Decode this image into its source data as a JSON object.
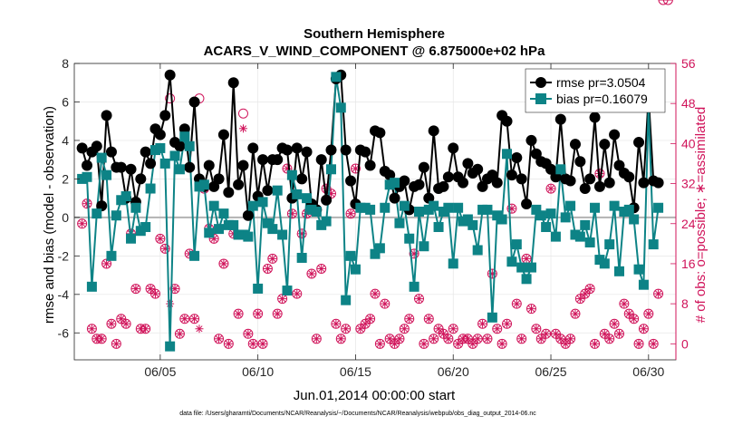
{
  "chart_data": {
    "type": "line",
    "title": "Southern Hemisphere",
    "subtitle": "ACARS_V_WIND_COMPONENT @ 6.875000e+02 hPa",
    "xlabel": "Jun.01,2014 00:00:00 start",
    "ylabel_left": "rmse and bias (model - observation)",
    "ylabel_right": "# of obs: o=possible; ∗=assimilated",
    "footnote": "data file: /Users/gharamti/Documents/NCAR/Reanalysis/~/Documents/NCAR/Reanalysis/webpub/obs_diag_output_2014-06.nc",
    "x_ticks": [
      "06/05",
      "06/10",
      "06/15",
      "06/20",
      "06/25",
      "06/30"
    ],
    "x_tick_days": [
      5,
      10,
      15,
      20,
      25,
      30
    ],
    "xlim_days": [
      0.6,
      31.4
    ],
    "ylim_left": [
      -7.4,
      8
    ],
    "yticks_left": [
      -6,
      -4,
      -2,
      0,
      2,
      4,
      6,
      8
    ],
    "ylim_right": [
      -3.2,
      56
    ],
    "yticks_right": [
      0,
      8,
      16,
      24,
      32,
      40,
      48,
      56
    ],
    "grid": true,
    "legend_position": "top-right",
    "x_days": [
      1.0,
      1.25,
      1.5,
      1.75,
      2.0,
      2.25,
      2.5,
      2.75,
      3.0,
      3.25,
      3.5,
      3.75,
      4.0,
      4.25,
      4.5,
      4.75,
      5.0,
      5.25,
      5.5,
      5.75,
      6.0,
      6.25,
      6.5,
      6.75,
      7.0,
      7.25,
      7.5,
      7.75,
      8.0,
      8.25,
      8.5,
      8.75,
      9.0,
      9.25,
      9.5,
      9.75,
      10.0,
      10.25,
      10.5,
      10.75,
      11.0,
      11.25,
      11.5,
      11.75,
      12.0,
      12.25,
      12.5,
      12.75,
      13.0,
      13.25,
      13.5,
      13.75,
      14.0,
      14.25,
      14.5,
      14.75,
      15.0,
      15.25,
      15.5,
      15.75,
      16.0,
      16.25,
      16.5,
      16.75,
      17.0,
      17.25,
      17.5,
      17.75,
      18.0,
      18.25,
      18.5,
      18.75,
      19.0,
      19.25,
      19.5,
      19.75,
      20.0,
      20.25,
      20.5,
      20.75,
      21.0,
      21.25,
      21.5,
      21.75,
      22.0,
      22.25,
      22.5,
      22.75,
      23.0,
      23.25,
      23.5,
      23.75,
      24.0,
      24.25,
      24.5,
      24.75,
      25.0,
      25.25,
      25.5,
      25.75,
      26.0,
      26.25,
      26.5,
      26.75,
      27.0,
      27.25,
      27.5,
      27.75,
      28.0,
      28.25,
      28.5,
      28.75,
      29.0,
      29.25,
      29.5,
      29.75,
      30.0,
      30.25,
      30.5,
      30.75,
      31.0
    ],
    "series": [
      {
        "name": "rmse pr=3.0504",
        "color": "#000000",
        "marker": "circle",
        "axis": "left",
        "values": [
          3.6,
          2.7,
          3.4,
          3.7,
          0.6,
          5.3,
          3.4,
          2.6,
          2.6,
          1.0,
          2.5,
          0.8,
          2.0,
          3.4,
          2.8,
          4.6,
          4.3,
          5.3,
          7.4,
          3.9,
          3.7,
          4.6,
          2.6,
          6.0,
          2.0,
          1.6,
          2.7,
          1.6,
          2.0,
          4.3,
          1.3,
          7.0,
          1.7,
          2.7,
          0.1,
          3.6,
          1.1,
          3.0,
          1.4,
          3.0,
          3.0,
          3.6,
          3.5,
          1.0,
          3.6,
          2.0,
          3.4,
          0.7,
          0.4,
          3.0,
          0.9,
          3.5,
          7.2,
          7.4,
          3.5,
          1.9,
          0.7,
          3.5,
          3.4,
          2.7,
          4.5,
          4.4,
          2.4,
          2.2,
          1.0,
          1.6,
          1.9,
          0.4,
          1.6,
          1.7,
          2.6,
          1.0,
          4.5,
          1.5,
          1.6,
          2.1,
          3.6,
          2.1,
          1.8,
          2.8,
          2.3,
          2.5,
          1.6,
          2.0,
          2.2,
          1.8,
          5.3,
          5.0,
          2.2,
          3.1,
          2.0,
          0.7,
          4.0,
          3.3,
          2.9,
          2.8,
          2.5,
          2.1,
          5.1,
          2.0,
          1.9,
          3.8,
          2.9,
          1.5,
          2.0,
          5.2,
          1.6,
          3.8,
          1.8,
          4.3,
          2.7,
          2.3,
          2.1,
          0.5,
          3.9,
          1.8,
          6.3,
          1.9,
          1.8
        ]
      },
      {
        "name": "bias pr=0.16079",
        "color": "#0d8386",
        "marker": "square",
        "axis": "left",
        "values": [
          2.0,
          2.1,
          -3.6,
          0.2,
          3.1,
          2.2,
          -2.0,
          0.1,
          0.9,
          1.1,
          -1.1,
          0.5,
          -0.7,
          -0.5,
          1.5,
          3.5,
          3.6,
          2.8,
          -6.7,
          3.2,
          2.5,
          4.2,
          3.7,
          -2.0,
          1.6,
          1.7,
          -0.8,
          0.6,
          -0.6,
          0.2,
          -0.4,
          -0.4,
          -0.9,
          -0.9,
          -1.0,
          0.6,
          -3.7,
          0.8,
          -0.3,
          -0.6,
          1.4,
          -0.9,
          -3.8,
          2.2,
          1.2,
          -2.1,
          1.0,
          0.4,
          0.3,
          -0.4,
          -0.2,
          2.5,
          7.3,
          5.7,
          -4.3,
          -2.0,
          -2.7,
          0.5,
          0.5,
          0.4,
          -1.9,
          -1.6,
          0.5,
          1.7,
          1.8,
          -0.3,
          0.6,
          -1.1,
          -3.6,
          0.3,
          -1.5,
          0.4,
          0.6,
          -0.5,
          0.3,
          0.5,
          -2.4,
          0.5,
          -0.2,
          -0.1,
          -0.4,
          -1.7,
          0.4,
          0.4,
          -5.2,
          0.1,
          -0.1,
          3.3,
          -2.3,
          -1.4,
          -2.6,
          -3.2,
          -2.6,
          0.4,
          0.1,
          -0.5,
          0.2,
          -1.0,
          2.5,
          0.0,
          0.6,
          -0.9,
          -1.0,
          -0.4,
          -1.3,
          0.5,
          -2.2,
          -2.4,
          -1.4,
          0.6,
          -2.8,
          0.3,
          0.4,
          -0.1,
          -2.7,
          -3.5,
          5.8,
          -1.4,
          0.5
        ]
      },
      {
        "name": "possible",
        "color": "#d0135a",
        "marker": "open circle",
        "axis": "right",
        "values": [
          24,
          28,
          3,
          1,
          1,
          16,
          4,
          0,
          5,
          4,
          22,
          11,
          3,
          3,
          11,
          10,
          21,
          19,
          49,
          11,
          2,
          5,
          18,
          5,
          49,
          31,
          23,
          21,
          1,
          16,
          0,
          22,
          6,
          46,
          2,
          0,
          6,
          0,
          15,
          17,
          6,
          9,
          35,
          26,
          10,
          22,
          26,
          14,
          1,
          15,
          31,
          30,
          4,
          1,
          3,
          26,
          35,
          3,
          4,
          5,
          10,
          0,
          8,
          1,
          0,
          1,
          3,
          5,
          18,
          9,
          0,
          5,
          1,
          3,
          2,
          1,
          3,
          0,
          1,
          1,
          0,
          1,
          4,
          1,
          14,
          3,
          0,
          4,
          27,
          8,
          1,
          17,
          7,
          3,
          1,
          2,
          31,
          2,
          1,
          0,
          1,
          6,
          9,
          10,
          11,
          0,
          34,
          2,
          1,
          4,
          2,
          8,
          6,
          5,
          0,
          3,
          6,
          0,
          10
        ]
      },
      {
        "name": "assimilated",
        "color": "#d0135a",
        "marker": "asterisk",
        "axis": "right",
        "values": [
          24,
          28,
          3,
          1,
          1,
          16,
          4,
          0,
          5,
          4,
          22,
          11,
          3,
          3,
          11,
          10,
          21,
          19,
          8,
          11,
          2,
          5,
          18,
          5,
          3,
          31,
          23,
          21,
          1,
          16,
          0,
          22,
          6,
          43,
          2,
          0,
          6,
          0,
          15,
          17,
          6,
          9,
          35,
          26,
          10,
          22,
          26,
          14,
          1,
          15,
          31,
          30,
          4,
          1,
          3,
          26,
          35,
          3,
          4,
          5,
          10,
          0,
          8,
          1,
          0,
          1,
          3,
          5,
          18,
          9,
          0,
          5,
          1,
          3,
          2,
          1,
          3,
          0,
          1,
          1,
          0,
          1,
          4,
          1,
          14,
          3,
          0,
          4,
          27,
          8,
          1,
          17,
          7,
          3,
          1,
          2,
          31,
          2,
          1,
          0,
          1,
          6,
          9,
          10,
          11,
          0,
          34,
          2,
          1,
          4,
          2,
          8,
          6,
          5,
          0,
          3,
          6,
          0,
          10
        ]
      }
    ],
    "colors": {
      "left_axis": "#000000",
      "right_axis": "#d0135a",
      "grid": "#e6e6e6",
      "zero_line": "#b3b3b3"
    }
  }
}
